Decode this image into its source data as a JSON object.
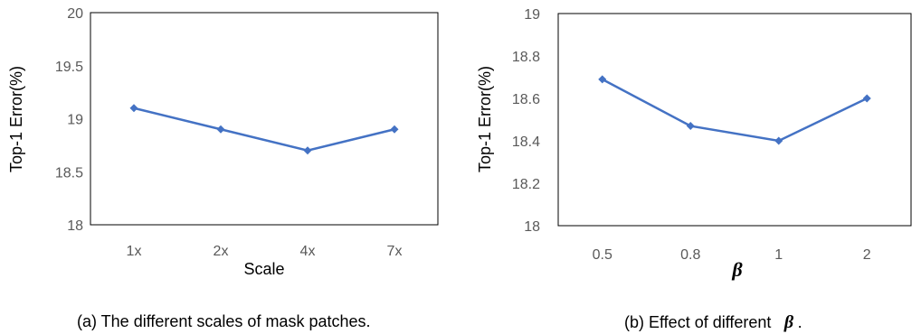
{
  "chart_data": [
    {
      "type": "line",
      "categories": [
        "1x",
        "2x",
        "4x",
        "7x"
      ],
      "values": [
        19.1,
        18.9,
        18.7,
        18.9
      ],
      "xlabel": "Scale",
      "ylabel": "Top-1  Error(%)",
      "ylim": [
        18,
        20
      ],
      "yticks": [
        "18",
        "18.5",
        "19",
        "19.5",
        "20"
      ],
      "grid": false,
      "color": "#4472C4",
      "caption": "(a) The different scales of mask patches."
    },
    {
      "type": "line",
      "categories": [
        "0.5",
        "0.8",
        "1",
        "2"
      ],
      "values": [
        18.69,
        18.47,
        18.4,
        18.6
      ],
      "xlabel": "β",
      "ylabel": "Top-1  Error(%)",
      "ylim": [
        18,
        19
      ],
      "yticks": [
        "18",
        "18.2",
        "18.4",
        "18.6",
        "18.8",
        "19"
      ],
      "grid": false,
      "color": "#4472C4",
      "caption_prefix": "(b) Effect of different",
      "caption_symbol": "β",
      "caption_suffix": "."
    }
  ]
}
